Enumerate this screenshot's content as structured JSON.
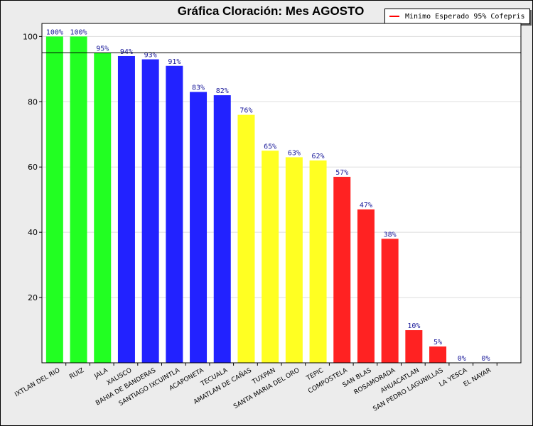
{
  "chart_data": {
    "type": "bar",
    "title": "Gráfica Cloración: Mes AGOSTO",
    "categories": [
      "IXTLAN DEL RIO",
      "RUIZ",
      "JALA",
      "XALISCO",
      "BAHIA DE BANDERAS",
      "SANTIAGO IXCUINTLA",
      "ACAPONETA",
      "TECUALA",
      "AMATLAN DE CAÑAS",
      "TUXPAN",
      "SANTA MARIA DEL ORO",
      "TEPIC",
      "COMPOSTELA",
      "SAN BLAS",
      "ROSAMORADA",
      "AHUACATLAN",
      "SAN PEDRO LAGUNILLAS",
      "LA YESCA",
      "EL NAYAR"
    ],
    "values": [
      100,
      100,
      95,
      94,
      93,
      91,
      83,
      82,
      76,
      65,
      63,
      62,
      57,
      47,
      38,
      10,
      5,
      0,
      0
    ],
    "data_labels": [
      "100%",
      "100%",
      "95%",
      "94%",
      "93%",
      "91%",
      "83%",
      "82%",
      "76%",
      "65%",
      "63%",
      "62%",
      "57%",
      "47%",
      "38%",
      "10%",
      "5%",
      "0%",
      "0%"
    ],
    "bar_colors": [
      "#22ff22",
      "#22ff22",
      "#22ff22",
      "#2222ff",
      "#2222ff",
      "#2222ff",
      "#2222ff",
      "#2222ff",
      "#ffff22",
      "#ffff22",
      "#ffff22",
      "#ffff22",
      "#ff2222",
      "#ff2222",
      "#ff2222",
      "#ff2222",
      "#ff2222",
      "#ff2222",
      "#ff2222"
    ],
    "yticks": [
      20,
      40,
      60,
      80,
      100
    ],
    "ylim": [
      0,
      104
    ],
    "grid": true,
    "reference_line": {
      "name": "Minimo Esperado 95% Cofepris",
      "value": 95,
      "color": "#000000"
    },
    "legend": {
      "entry": "Minimo Esperado 95% Cofepris",
      "color": "#ff0000",
      "placement": "top-right"
    }
  }
}
